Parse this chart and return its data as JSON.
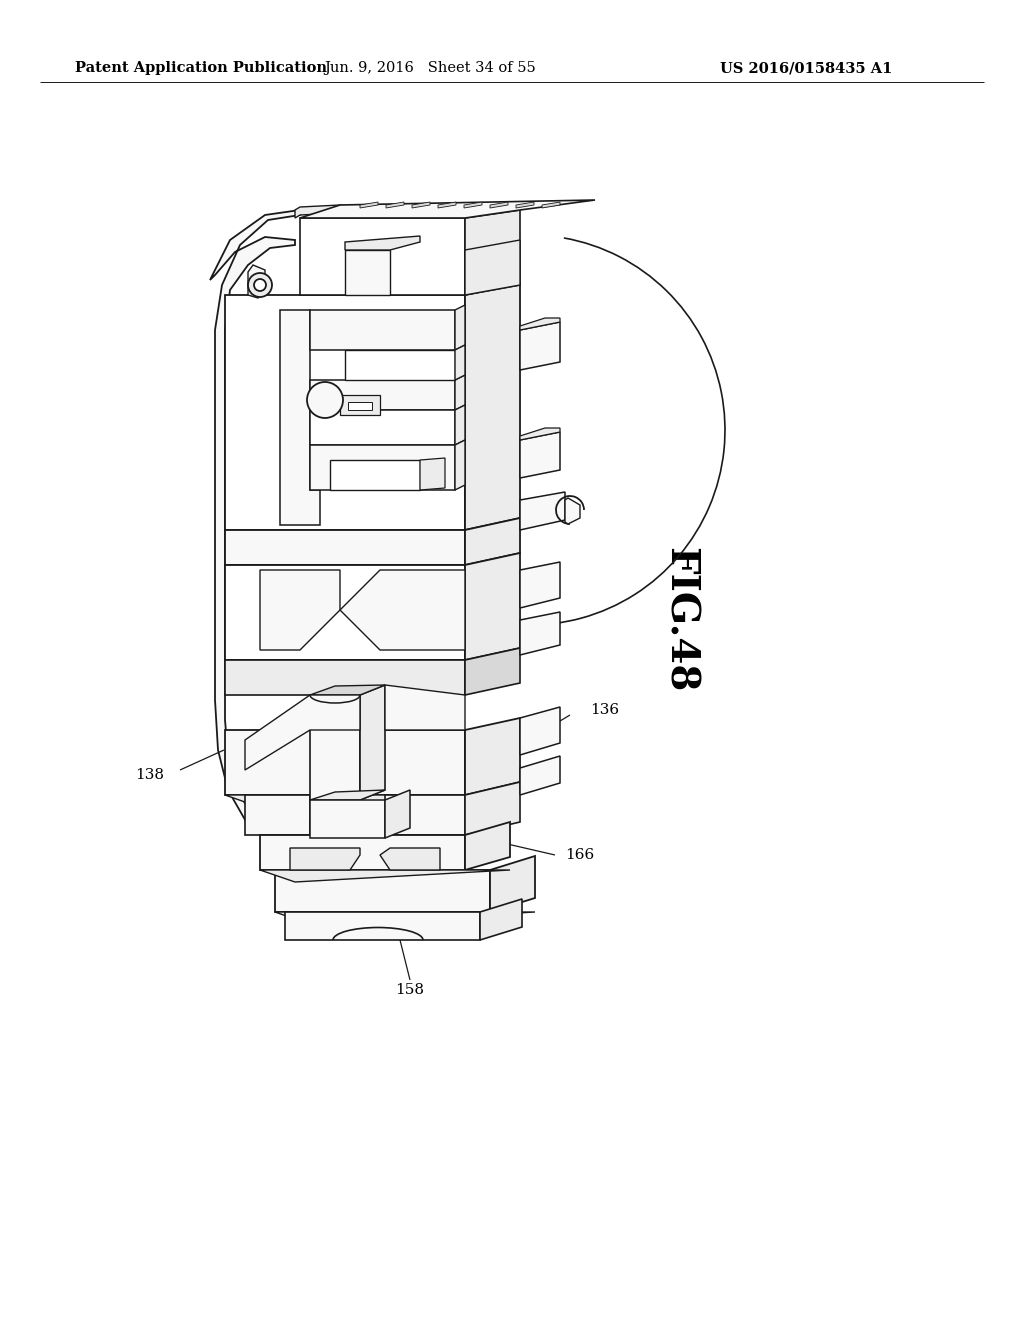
{
  "background_color": "#ffffff",
  "header_left": "Patent Application Publication",
  "header_center": "Jun. 9, 2016   Sheet 34 of 55",
  "header_right": "US 2016/0158435 A1",
  "figure_label": "FIG.48",
  "header_fontsize": 10.5,
  "fig_label_fontsize": 28,
  "line_color": "#1a1a1a",
  "fill_light": "#f8f8f8",
  "fill_mid": "#ececec",
  "fill_dark": "#d8d8d8",
  "fill_white": "#ffffff"
}
